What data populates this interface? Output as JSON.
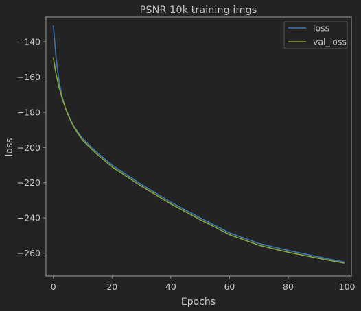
{
  "chart_data": {
    "type": "line",
    "title": "PSNR 10k training imgs",
    "xlabel": "Epochs",
    "ylabel": "loss",
    "xlim": [
      -2.5,
      101.5
    ],
    "ylim": [
      -273,
      -126
    ],
    "xticks": [
      0,
      20,
      40,
      60,
      80,
      100
    ],
    "yticks": [
      -140,
      -160,
      -180,
      -200,
      -220,
      -240,
      -260
    ],
    "grid": false,
    "legend_position": "top-right",
    "colors": {
      "background": "#232323",
      "axes": "#8a8a8a",
      "text": "#c8c8c8",
      "loss": "#3f78b5",
      "val_loss": "#8aa83a"
    },
    "series": [
      {
        "name": "loss",
        "x": [
          0,
          1,
          2,
          3,
          4,
          5,
          7,
          10,
          15,
          20,
          30,
          40,
          50,
          60,
          70,
          80,
          90,
          99
        ],
        "values": [
          -131,
          -150,
          -163,
          -171,
          -177,
          -181,
          -188,
          -195,
          -203,
          -210,
          -221,
          -231,
          -240,
          -248.5,
          -254.5,
          -258.5,
          -262,
          -265
        ]
      },
      {
        "name": "val_loss",
        "x": [
          0,
          1,
          2,
          3,
          4,
          5,
          7,
          10,
          15,
          20,
          30,
          40,
          50,
          60,
          70,
          80,
          90,
          99
        ],
        "values": [
          -149,
          -159,
          -166,
          -172,
          -177,
          -181.5,
          -188.5,
          -196,
          -204,
          -211,
          -222,
          -232,
          -241,
          -249.5,
          -255.5,
          -259.5,
          -262.8,
          -265.6
        ]
      }
    ]
  }
}
